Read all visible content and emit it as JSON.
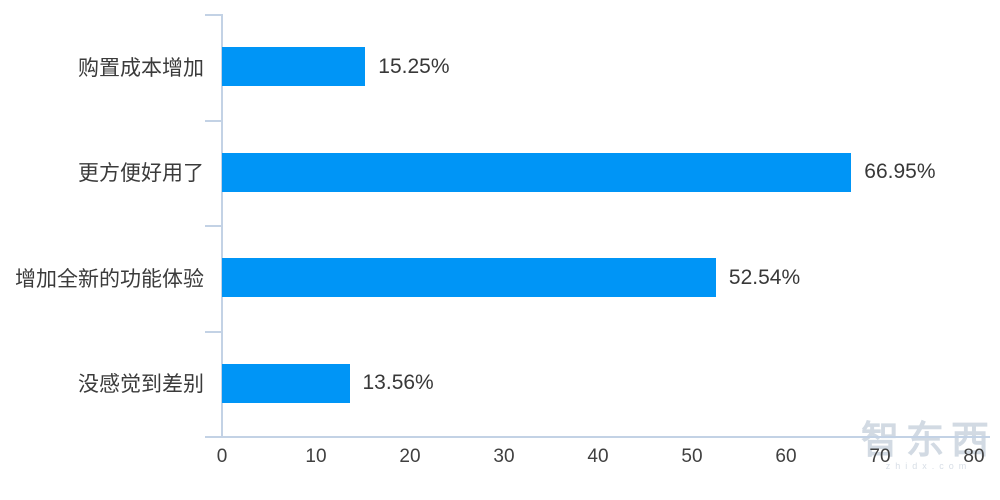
{
  "chart_data": {
    "type": "bar",
    "orientation": "horizontal",
    "title": "",
    "xlabel": "",
    "ylabel": "",
    "categories": [
      "购置成本增加",
      "更方便好用了",
      "增加全新的功能体验",
      "没感觉到差别"
    ],
    "values": [
      15.25,
      66.95,
      52.54,
      13.56
    ],
    "value_labels": [
      "15.25%",
      "66.95%",
      "52.54%",
      "13.56%"
    ],
    "xlim": [
      0,
      80
    ],
    "x_ticks": [
      0,
      10,
      20,
      30,
      40,
      50,
      60,
      70,
      80
    ],
    "grid": false,
    "legend": "none",
    "bar_color": "#0095f6",
    "axis_color": "#c3d2e5",
    "label_color": "#3b3b3b"
  },
  "watermark": {
    "text": "智东西",
    "subtext": "zhidx.com"
  }
}
